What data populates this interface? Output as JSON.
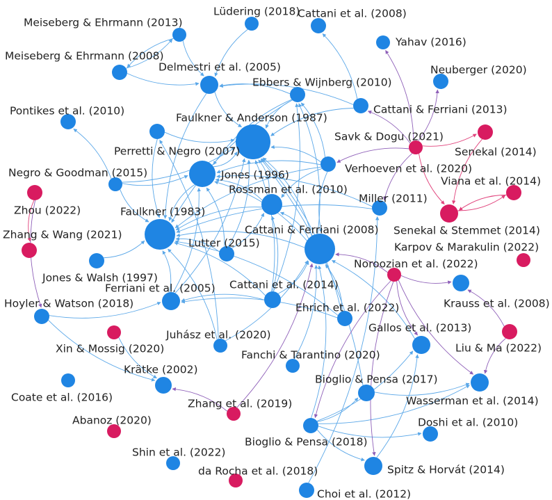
{
  "colors": {
    "blue": "#1f85e3",
    "magenta": "#d81b60",
    "edge_blue": "#5aa7e8",
    "edge_purple": "#8e5fb8",
    "edge_pink": "#e0407a"
  },
  "nodes": [
    {
      "id": "ludering2018",
      "label": "Lüdering (2018)",
      "group": "blue"
    },
    {
      "id": "cattani2008a",
      "label": "Cattani et al. (2008)",
      "group": "blue"
    },
    {
      "id": "meiseberg2013",
      "label": "Meiseberg & Ehrmann (2013)",
      "group": "blue"
    },
    {
      "id": "yahav2016",
      "label": "Yahav (2016)",
      "group": "blue"
    },
    {
      "id": "meiseberg2008",
      "label": "Meiseberg & Ehrmann (2008)",
      "group": "blue"
    },
    {
      "id": "delmestri2005",
      "label": "Delmestri et al. (2005)",
      "group": "blue"
    },
    {
      "id": "neuberger2020",
      "label": "Neuberger (2020)",
      "group": "blue"
    },
    {
      "id": "ebbers2010",
      "label": "Ebbers & Wijnberg (2010)",
      "group": "blue"
    },
    {
      "id": "cattaniferriani2013",
      "label": "Cattani & Ferriani (2013)",
      "group": "blue"
    },
    {
      "id": "pontikes2010",
      "label": "Pontikes et al. (2010)",
      "group": "blue"
    },
    {
      "id": "faulkneranderson1987",
      "label": "Faulkner & Anderson (1987)",
      "group": "blue"
    },
    {
      "id": "savk2021",
      "label": "Savk & Dogu (2021)",
      "group": "magenta"
    },
    {
      "id": "senekal2014",
      "label": "Senekal (2014)",
      "group": "magenta"
    },
    {
      "id": "perretti2007",
      "label": "Perretti & Negro (2007)",
      "group": "blue"
    },
    {
      "id": "verhoeven2020",
      "label": "Verhoeven et al. (2020)",
      "group": "blue"
    },
    {
      "id": "negro2015",
      "label": "Negro & Goodman (2015)",
      "group": "blue"
    },
    {
      "id": "jones1996",
      "label": "Jones (1996)",
      "group": "blue"
    },
    {
      "id": "viana2014",
      "label": "Viana et al. (2014)",
      "group": "magenta"
    },
    {
      "id": "rossman2010",
      "label": "Rossman et al. (2010)",
      "group": "blue"
    },
    {
      "id": "zhou2022",
      "label": "Zhou (2022)",
      "group": "magenta"
    },
    {
      "id": "miller2011",
      "label": "Miller (2011)",
      "group": "blue"
    },
    {
      "id": "faulkner1983",
      "label": "Faulkner (1983)",
      "group": "blue"
    },
    {
      "id": "senekalstemmet2014",
      "label": "Senekal & Stemmet (2014)",
      "group": "magenta"
    },
    {
      "id": "cattaniferriani2008",
      "label": "Cattani & Ferriani (2008)",
      "group": "blue"
    },
    {
      "id": "zhangwang2021",
      "label": "Zhang & Wang (2021)",
      "group": "magenta"
    },
    {
      "id": "lutter2015",
      "label": "Lutter (2015)",
      "group": "blue"
    },
    {
      "id": "karpov2022",
      "label": "Karpov & Marakulin (2022)",
      "group": "magenta"
    },
    {
      "id": "noroozian2022",
      "label": "Noroozian et al. (2022)",
      "group": "magenta"
    },
    {
      "id": "joneswalsh1997",
      "label": "Jones & Walsh (1997)",
      "group": "blue"
    },
    {
      "id": "ferriani2005",
      "label": "Ferriani et al. (2005)",
      "group": "blue"
    },
    {
      "id": "cattani2014",
      "label": "Cattani et al. (2014)",
      "group": "blue"
    },
    {
      "id": "krauss2008",
      "label": "Krauss et al. (2008)",
      "group": "blue"
    },
    {
      "id": "hoyler2018",
      "label": "Hoyler & Watson (2018)",
      "group": "blue"
    },
    {
      "id": "ehrich2022",
      "label": "Ehrich et al. (2022)",
      "group": "blue"
    },
    {
      "id": "juhasz2020",
      "label": "Juhász et al. (2020)",
      "group": "blue"
    },
    {
      "id": "gallos2013",
      "label": "Gallos et al. (2013)",
      "group": "blue"
    },
    {
      "id": "xin2020",
      "label": "Xin & Mossig (2020)",
      "group": "magenta"
    },
    {
      "id": "liuma2022",
      "label": "Liu & Ma (2022)",
      "group": "magenta"
    },
    {
      "id": "fanchi2020",
      "label": "Fanchi & Tarantino (2020)",
      "group": "blue"
    },
    {
      "id": "kratke2002",
      "label": "Krätke (2002)",
      "group": "blue"
    },
    {
      "id": "bioglio2017",
      "label": "Bioglio & Pensa (2017)",
      "group": "blue"
    },
    {
      "id": "coate2016",
      "label": "Coate et al. (2016)",
      "group": "blue"
    },
    {
      "id": "wasserman2014",
      "label": "Wasserman et al. (2014)",
      "group": "blue"
    },
    {
      "id": "zhang2019",
      "label": "Zhang et al. (2019)",
      "group": "magenta"
    },
    {
      "id": "abanoz2020",
      "label": "Abanoz (2020)",
      "group": "magenta"
    },
    {
      "id": "doshi2010",
      "label": "Doshi et al. (2010)",
      "group": "blue"
    },
    {
      "id": "bioglio2018",
      "label": "Bioglio & Pensa (2018)",
      "group": "blue"
    },
    {
      "id": "shin2022",
      "label": "Shin et al. (2022)",
      "group": "blue"
    },
    {
      "id": "spitz2014",
      "label": "Spitz & Horvát (2014)",
      "group": "blue"
    },
    {
      "id": "darocha2018",
      "label": "da Rocha et al. (2018)",
      "group": "magenta"
    },
    {
      "id": "choi2012",
      "label": "Choi et al. (2012)",
      "group": "blue"
    }
  ],
  "edges": [
    [
      "meiseberg2013",
      "delmestri2005"
    ],
    [
      "meiseberg2008",
      "meiseberg2013"
    ],
    [
      "meiseberg2013",
      "meiseberg2008"
    ],
    [
      "meiseberg2008",
      "delmestri2005"
    ],
    [
      "ludering2018",
      "delmestri2005"
    ],
    [
      "ebbers2010",
      "delmestri2005"
    ],
    [
      "ebbers2010",
      "faulkneranderson1987"
    ],
    [
      "ebbers2010",
      "faulkner1983"
    ],
    [
      "ebbers2010",
      "jones1996"
    ],
    [
      "cattaniferriani2013",
      "faulkneranderson1987"
    ],
    [
      "cattaniferriani2013",
      "delmestri2005"
    ],
    [
      "cattaniferriani2013",
      "cattani2008a"
    ],
    [
      "delmestri2005",
      "faulkneranderson1987"
    ],
    [
      "delmestri2005",
      "faulkner1983"
    ],
    [
      "perretti2007",
      "faulkneranderson1987"
    ],
    [
      "perretti2007",
      "faulkner1983"
    ],
    [
      "negro2015",
      "pontikes2010"
    ],
    [
      "negro2015",
      "jones1996"
    ],
    [
      "negro2015",
      "faulkneranderson1987"
    ],
    [
      "negro2015",
      "faulkner1983"
    ],
    [
      "verhoeven2020",
      "faulkneranderson1987"
    ],
    [
      "verhoeven2020",
      "jones1996"
    ],
    [
      "verhoeven2020",
      "rossman2010"
    ],
    [
      "verhoeven2020",
      "faulkner1983"
    ],
    [
      "verhoeven2020",
      "cattaniferriani2008"
    ],
    [
      "verhoeven2020",
      "ebbers2010"
    ],
    [
      "rossman2010",
      "faulkneranderson1987"
    ],
    [
      "rossman2010",
      "jones1996"
    ],
    [
      "rossman2010",
      "faulkner1983"
    ],
    [
      "jones1996",
      "faulkneranderson1987"
    ],
    [
      "jones1996",
      "faulkner1983"
    ],
    [
      "cattaniferriani2008",
      "faulkneranderson1987"
    ],
    [
      "cattaniferriani2008",
      "rossman2010"
    ],
    [
      "cattaniferriani2008",
      "faulkner1983"
    ],
    [
      "cattaniferriani2008",
      "jones1996"
    ],
    [
      "cattaniferriani2008",
      "ebbers2010"
    ],
    [
      "lutter2015",
      "faulkneranderson1987"
    ],
    [
      "lutter2015",
      "faulkner1983"
    ],
    [
      "lutter2015",
      "rossman2010"
    ],
    [
      "lutter2015",
      "jones1996"
    ],
    [
      "joneswalsh1997",
      "faulkner1983"
    ],
    [
      "ferriani2005",
      "faulkner1983"
    ],
    [
      "ferriani2005",
      "jones1996"
    ],
    [
      "ferriani2005",
      "faulkneranderson1987"
    ],
    [
      "cattani2014",
      "cattaniferriani2008"
    ],
    [
      "cattani2014",
      "faulkner1983"
    ],
    [
      "cattani2014",
      "ferriani2005"
    ],
    [
      "cattani2014",
      "rossman2010"
    ],
    [
      "cattani2014",
      "ebbers2010"
    ],
    [
      "cattani2014",
      "faulkneranderson1987"
    ],
    [
      "juhasz2020",
      "faulkner1983"
    ],
    [
      "juhasz2020",
      "cattaniferriani2008"
    ],
    [
      "juhasz2020",
      "perretti2007"
    ],
    [
      "ehrich2022",
      "cattaniferriani2008"
    ],
    [
      "ehrich2022",
      "faulkner1983"
    ],
    [
      "ehrich2022",
      "ferriani2005"
    ],
    [
      "ehrich2022",
      "faulkneranderson1987"
    ],
    [
      "hoyler2018",
      "ferriani2005"
    ],
    [
      "hoyler2018",
      "kratke2002"
    ],
    [
      "xin2020",
      "kratke2002"
    ],
    [
      "miller2011",
      "faulkner1983"
    ],
    [
      "miller2011",
      "jones1996"
    ],
    [
      "fanchi2020",
      "cattaniferriani2008"
    ],
    [
      "gallos2013",
      "cattaniferriani2008"
    ],
    [
      "bioglio2017",
      "wasserman2014"
    ],
    [
      "bioglio2017",
      "faulkneranderson1987"
    ],
    [
      "bioglio2018",
      "bioglio2017"
    ],
    [
      "bioglio2018",
      "spitz2014"
    ],
    [
      "bioglio2018",
      "doshi2010"
    ],
    [
      "bioglio2018",
      "wasserman2014"
    ],
    [
      "bioglio2018",
      "gallos2013"
    ],
    [
      "bioglio2018",
      "cattaniferriani2008"
    ],
    [
      "choi2012",
      "miller2011"
    ],
    [
      "spitz2014",
      "gallos2013"
    ]
  ],
  "purple_edges": [
    [
      "savk2021",
      "yahav2016"
    ],
    [
      "savk2021",
      "neuberger2020"
    ],
    [
      "savk2021",
      "cattaniferriani2013"
    ],
    [
      "savk2021",
      "verhoeven2020"
    ],
    [
      "noroozian2022",
      "krauss2008"
    ],
    [
      "noroozian2022",
      "gallos2013"
    ],
    [
      "noroozian2022",
      "cattaniferriani2008"
    ],
    [
      "noroozian2022",
      "spitz2014"
    ],
    [
      "noroozian2022",
      "bioglio2018"
    ],
    [
      "noroozian2022",
      "wasserman2014"
    ],
    [
      "zhou2022",
      "hoyler2018"
    ],
    [
      "zhang2019",
      "kratke2002"
    ],
    [
      "zhang2019",
      "cattaniferriani2008"
    ],
    [
      "liuma2022",
      "krauss2008"
    ],
    [
      "liuma2022",
      "wasserman2014"
    ],
    [
      "savk2021",
      "miller2011"
    ]
  ],
  "pink_edges": [
    [
      "savk2021",
      "senekal2014"
    ],
    [
      "savk2021",
      "senekalstemmet2014"
    ],
    [
      "senekal2014",
      "senekalstemmet2014"
    ],
    [
      "viana2014",
      "senekalstemmet2014"
    ],
    [
      "senekalstemmet2014",
      "viana2014"
    ],
    [
      "zhou2022",
      "zhangwang2021"
    ]
  ]
}
